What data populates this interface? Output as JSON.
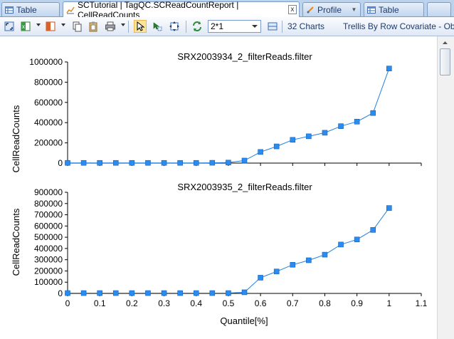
{
  "tabs": [
    {
      "label": "Table",
      "icon": "table-icon"
    },
    {
      "label": "SCTutorial | TagQC.SCReadCountReport | CellReadCounts",
      "icon": "chart-icon",
      "close": "x"
    },
    {
      "label": "Profile",
      "icon": "profile-icon"
    },
    {
      "label": "Table",
      "icon": "table-icon"
    }
  ],
  "toolbar": {
    "layout_value": "2*1",
    "charts_count": "32 Charts",
    "trellis_label": "Trellis By Row Covariate - Obser"
  },
  "colors": {
    "series": "#1f7fe0",
    "marker": "#2a8cf0",
    "axis": "#000000"
  },
  "chart_data": [
    {
      "type": "line",
      "title": "SRX2003934_2_filterReads.filter",
      "xlabel": "",
      "ylabel": "CellReadCounts",
      "xlim": [
        0,
        1.1
      ],
      "ylim": [
        0,
        1000000
      ],
      "yticks": [
        0,
        200000,
        400000,
        600000,
        800000,
        1000000
      ],
      "x": [
        0,
        0.05,
        0.1,
        0.15,
        0.2,
        0.25,
        0.3,
        0.35,
        0.4,
        0.45,
        0.5,
        0.55,
        0.6,
        0.65,
        0.7,
        0.75,
        0.8,
        0.85,
        0.9,
        0.95,
        1
      ],
      "y": [
        2000,
        2000,
        2000,
        2000,
        2000,
        2000,
        2000,
        2000,
        2000,
        3000,
        5000,
        25000,
        110000,
        165000,
        230000,
        265000,
        300000,
        365000,
        410000,
        495000,
        935000
      ]
    },
    {
      "type": "line",
      "title": "SRX2003935_2_filterReads.filter",
      "xlabel": "Quantile[%]",
      "ylabel": "CellReadCounts",
      "xlim": [
        0,
        1.1
      ],
      "ylim": [
        0,
        900000
      ],
      "yticks": [
        0,
        100000,
        200000,
        300000,
        400000,
        500000,
        600000,
        700000,
        800000,
        900000
      ],
      "xticks": [
        0,
        0.1,
        0.2,
        0.3,
        0.4,
        0.5,
        0.6,
        0.7,
        0.8,
        0.9,
        1,
        1.1
      ],
      "x": [
        0,
        0.05,
        0.1,
        0.15,
        0.2,
        0.25,
        0.3,
        0.35,
        0.4,
        0.45,
        0.5,
        0.55,
        0.6,
        0.65,
        0.7,
        0.75,
        0.8,
        0.85,
        0.9,
        0.95,
        1
      ],
      "y": [
        3000,
        3000,
        3000,
        3000,
        3000,
        3000,
        3000,
        3000,
        3000,
        3000,
        3000,
        10000,
        140000,
        195000,
        255000,
        295000,
        345000,
        435000,
        480000,
        565000,
        760000
      ]
    }
  ]
}
